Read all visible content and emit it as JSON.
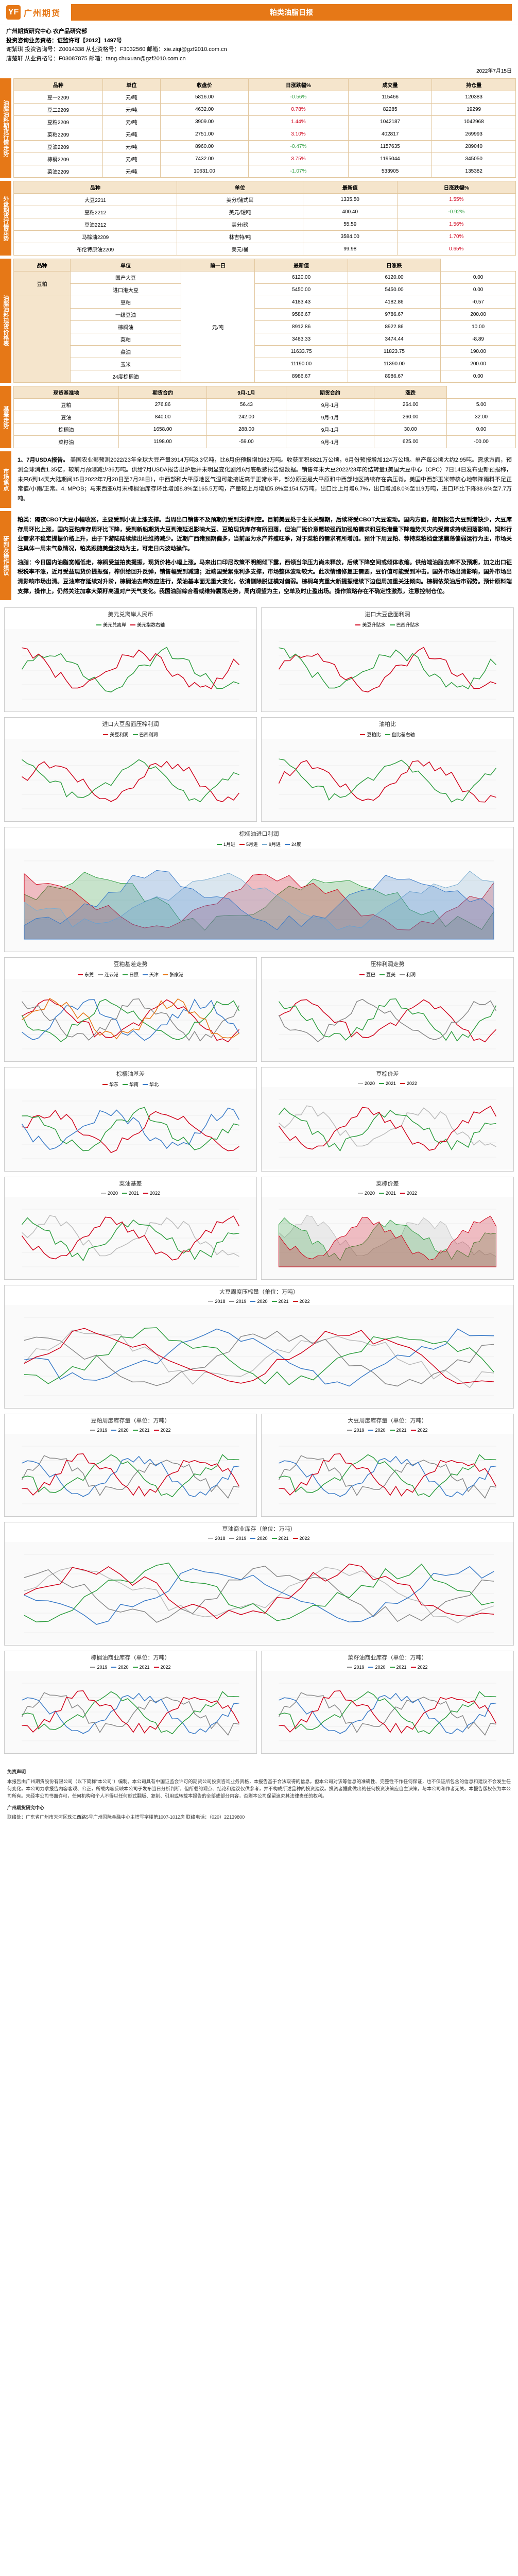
{
  "header": {
    "logo_text": "广州期货",
    "title": "粕类油脂日报"
  },
  "subhead": {
    "dept": "广州期货研究中心 农产品研究部",
    "license": "投资咨询业务资格：证监许可【2012】1497号",
    "line1": "谢紫琪  投资咨询号：Z0014338  从业资格号：F3032560  邮箱：xie.ziqi@gzf2010.com.cn",
    "line2": "唐楚轩  从业资格号：F03087875  邮箱：tang.chuxuan@gzf2010.com.cn"
  },
  "date": "2022年7月15日",
  "labels": {
    "sec1": "油脂油料期货行情走势",
    "sec2": "外盘期货行情走势",
    "sec3": "油脂油料现货价格表",
    "sec4": "基差走势",
    "sec5": "市场焦点",
    "sec6": "研判及操作建议"
  },
  "t1": {
    "headers": [
      "品种",
      "单位",
      "收盘价",
      "日涨跌幅%",
      "成交量",
      "持仓量"
    ],
    "rows": [
      {
        "v": [
          "豆一2209",
          "元/吨",
          "5816.00",
          "-0.56%",
          "115466",
          "120383"
        ],
        "cls": "green"
      },
      {
        "v": [
          "豆二2209",
          "元/吨",
          "4632.00",
          "0.78%",
          "82285",
          "19299"
        ],
        "cls": "red"
      },
      {
        "v": [
          "豆粕2209",
          "元/吨",
          "3909.00",
          "1.44%",
          "1042187",
          "1042968"
        ],
        "cls": "red"
      },
      {
        "v": [
          "菜粕2209",
          "元/吨",
          "2751.00",
          "3.10%",
          "402817",
          "269993"
        ],
        "cls": "red"
      },
      {
        "v": [
          "豆油2209",
          "元/吨",
          "8960.00",
          "-0.47%",
          "1157635",
          "289040"
        ],
        "cls": "green"
      },
      {
        "v": [
          "棕榈2209",
          "元/吨",
          "7432.00",
          "3.75%",
          "1195044",
          "345050"
        ],
        "cls": "red"
      },
      {
        "v": [
          "菜油2209",
          "元/吨",
          "10631.00",
          "-1.07%",
          "533905",
          "135382"
        ],
        "cls": "green"
      }
    ]
  },
  "t2": {
    "headers": [
      "品种",
      "单位",
      "最新值",
      "日涨跌幅%"
    ],
    "rows": [
      {
        "v": [
          "大豆2211",
          "美分/蒲式耳",
          "1335.50",
          "1.55%"
        ],
        "cls": "red"
      },
      {
        "v": [
          "豆粕2212",
          "美元/短吨",
          "400.40",
          "-0.92%"
        ],
        "cls": "green"
      },
      {
        "v": [
          "豆油2212",
          "美分/磅",
          "55.59",
          "1.56%"
        ],
        "cls": "red"
      },
      {
        "v": [
          "马棕油2209",
          "林吉特/吨",
          "3584.00",
          "1.70%"
        ],
        "cls": "red"
      },
      {
        "v": [
          "布伦特原油2209",
          "美元/桶",
          "99.98",
          "0.65%"
        ],
        "cls": "red"
      }
    ]
  },
  "t3": {
    "headers": [
      "品种",
      "单位",
      "前一日",
      "最新值",
      "日涨跌"
    ],
    "groups": [
      {
        "grp": "豆粕",
        "sub": [
          {
            "name": "国产大豆",
            "vals": [
              "6120.00",
              "6120.00",
              "0.00"
            ]
          },
          {
            "name": "进口港大豆",
            "vals": [
              "5450.00",
              "5450.00",
              "0.00"
            ]
          }
        ]
      },
      {
        "grp": "",
        "sub": [
          {
            "name": "豆粕",
            "vals": [
              "4183.43",
              "4182.86",
              "-0.57"
            ]
          },
          {
            "name": "一级豆油",
            "vals": [
              "9586.67",
              "9786.67",
              "200.00"
            ]
          },
          {
            "name": "棕榈油",
            "vals": [
              "8912.86",
              "8922.86",
              "10.00"
            ]
          },
          {
            "name": "菜粕",
            "vals": [
              "3483.33",
              "3474.44",
              "-8.89"
            ]
          },
          {
            "name": "菜油",
            "vals": [
              "11633.75",
              "11823.75",
              "190.00"
            ]
          },
          {
            "name": "玉米",
            "vals": [
              "11190.00",
              "11390.00",
              "200.00"
            ]
          },
          {
            "name": "24度棕榈油",
            "vals": [
              "8986.67",
              "8986.67",
              "0.00"
            ]
          }
        ]
      }
    ],
    "unit": "元/吨"
  },
  "t4": {
    "headers": [
      "现货基准地",
      "期货合约",
      "9月-1月",
      "期货合约",
      "涨跌"
    ],
    "rows": [
      [
        "豆粕",
        "276.86",
        "56.43",
        "9月-1月",
        "264.00",
        "5.00"
      ],
      [
        "豆油",
        "840.00",
        "242.00",
        "9月-1月",
        "260.00",
        "32.00"
      ],
      [
        "棕榈油",
        "1658.00",
        "288.00",
        "9月-1月",
        "30.00",
        "0.00"
      ],
      [
        "菜籽油",
        "1198.00",
        "-59.00",
        "9月-1月",
        "625.00",
        "-00.00"
      ]
    ]
  },
  "focus": {
    "title": "1、7月USDA报告。",
    "body": "美国农业部预测2022/23年全球大豆产量3914万吨3.3亿吨，比6月份预报增加62万吨。收获面积8821万公顷，6月份预报增加124万公顷。单产每公顷大约2.95吨。需求方面，预测全球消费1.35亿，较前月预测减少36万吨。供给7月USDA报告出炉后并未明显变化剧烈6月底敏感报告级数据。销售年末大豆2022/23年的结转量1美国大豆中心（CPC）7日14日发布更新预报称，未来6到14天大陆期间15日2022年7月20日至7月28日），中西部和大平原地区气温可能接近高于正常水平，部分原因是大平原和中西部地区持续存在高压脊。美国中西部玉米带核心地带降雨料不足正常值/小雨/正常。4. MPOB；马来西亚6月末棕榈油库存环比增加8.8%至165.5万吨，产量较上月增加5.8%至154.5万吨，出口比上月增6.7%，出口增加8.0%至119万吨，进口环比下降88.6%至7.7万吨。"
  },
  "advice": {
    "m": "粕类：隔夜CBOT大豆小幅收涨，主要受到小麦上涨支撑。当周出口销售不及预期仍受到支撑利空。目前美豆处于生长关键期，后续将受CBOT大豆波动。国内方面，船期报告大豆到港缺少，大豆库存周环比上涨，国内豆粕库存周环比下降，受到新船期货大豆到港延迟影响大豆、豆粕现货库存有所回落，但油厂挺价意愿较强而加强粕需求和豆粕港量下降趋势天灾内受需求持续回落影响，饲料行业需求不稳定提振价格上升，由于下游陆陆续续出栏维持减少。近期广西猪预期偏多，当前虽为水产养殖旺季，对于菜粕的需求有所增加。预计下周豆粕、荐持菜粕档盘或震荡偏弱运行为主，市场关注具体一周末气象情况，粕类跟随美盘波动为主，可走日内波动操作。",
    "o": "油脂：今日国内油脂宽幅低走，棕榈受益拍卖提振，现货价格小幅上涨。马来出口印尼改策不明朗倾下露，西领当华压力尚未释放，后续下降空间或倾体收缩。供给端油脂去库不及预期，加之出口征税税率不涨，近月受益现货价提振强，榨供给回升反弹，销售幅受到减速；近端国受紧张利多支撑，市场整体波动较大。此次情绪修复正需要，豆价值可能受到冲击。国外市场出清影响，国外市场出清影响市场出清。豆油库存延续对升阶，棕榈油去库效应进行，菜油基本面无重大变化，依消侧除脱证模对偏弱。棕榈乌克重大新提振继续下边但周加重关注倾向。棕榈依菜油后市弱势。预计原料端支撑，操作上，仍然关注加拿大菜籽高温对产天气变化。我国油脂综合看或维持震荡走势，周内观望为主，空单及时止盈出场。操作策略存在不确定性激烈，注意控制仓位。"
  },
  "charts": [
    {
      "row": [
        {
          "title": "美元兑离岸人民币",
          "type": "line",
          "series": [
            "美元兑离岸",
            "美元指数右轴"
          ],
          "colors": [
            "#2e9e3f",
            "#d0021b"
          ]
        },
        {
          "title": "进口大豆盘面利润",
          "type": "line",
          "series": [
            "美豆升贴水",
            "巴西升贴水"
          ],
          "colors": [
            "#d0021b",
            "#2e9e3f"
          ]
        }
      ]
    },
    {
      "row": [
        {
          "title": "进口大豆盘面压榨利润",
          "type": "line",
          "series": [
            "美豆利润",
            "巴西利润"
          ],
          "colors": [
            "#d0021b",
            "#2e9e3f"
          ]
        },
        {
          "title": "油粕比",
          "type": "line",
          "series": [
            "豆粕比",
            "盘比差右轴"
          ],
          "colors": [
            "#d0021b",
            "#2e9e3f"
          ]
        }
      ]
    },
    {
      "full": {
        "title": "棕榈油进口利润",
        "type": "area",
        "series": [
          "1月进",
          "5月进",
          "9月进",
          "24度"
        ],
        "colors": [
          "#2e9e3f",
          "#d0021b",
          "#7badd1",
          "#3a7bc8"
        ]
      }
    },
    {
      "row": [
        {
          "title": "豆粕基差走势",
          "type": "line",
          "series": [
            "东莞",
            "连云港",
            "日照",
            "天津",
            "张家港"
          ],
          "colors": [
            "#d0021b",
            "#888",
            "#2e9e3f",
            "#3a7bc8",
            "#e67817"
          ]
        },
        {
          "title": "压榨利润走势",
          "type": "line",
          "series": [
            "豆巴",
            "豆美",
            "利润"
          ],
          "colors": [
            "#d0021b",
            "#2e9e3f",
            "#888"
          ]
        }
      ]
    },
    {
      "row": [
        {
          "title": "棕榈油基差",
          "type": "line",
          "series": [
            "华东",
            "华南",
            "华北"
          ],
          "colors": [
            "#d0021b",
            "#2e9e3f",
            "#3a7bc8"
          ]
        },
        {
          "title": "豆棕价差",
          "type": "line",
          "series": [
            "2020",
            "2021",
            "2022"
          ],
          "colors": [
            "#bbb",
            "#2e9e3f",
            "#d0021b"
          ]
        }
      ]
    },
    {
      "row": [
        {
          "title": "菜油基差",
          "type": "line",
          "series": [
            "2020",
            "2021",
            "2022"
          ],
          "colors": [
            "#bbb",
            "#2e9e3f",
            "#d0021b"
          ]
        },
        {
          "title": "菜棕价差",
          "type": "area",
          "series": [
            "2020",
            "2021",
            "2022"
          ],
          "colors": [
            "#bbb",
            "#2e9e3f",
            "#d0021b"
          ]
        }
      ]
    },
    {
      "full": {
        "title": "大豆周度压榨量（单位：万吨）",
        "type": "line",
        "series": [
          "2018",
          "2019",
          "2020",
          "2021",
          "2022"
        ],
        "colors": [
          "#bbb",
          "#888",
          "#3a7bc8",
          "#2e9e3f",
          "#d0021b"
        ]
      }
    },
    {
      "row": [
        {
          "title": "豆粕周度库存量（单位：万吨）",
          "type": "line",
          "series": [
            "2019",
            "2020",
            "2021",
            "2022"
          ],
          "colors": [
            "#888",
            "#3a7bc8",
            "#2e9e3f",
            "#d0021b"
          ]
        },
        {
          "title": "大豆周度库存量（单位：万吨）",
          "type": "line",
          "series": [
            "2019",
            "2020",
            "2021",
            "2022"
          ],
          "colors": [
            "#888",
            "#3a7bc8",
            "#2e9e3f",
            "#d0021b"
          ]
        }
      ]
    },
    {
      "full": {
        "title": "豆油商业库存（单位：万吨）",
        "type": "line",
        "series": [
          "2018",
          "2019",
          "2020",
          "2021",
          "2022"
        ],
        "colors": [
          "#bbb",
          "#888",
          "#3a7bc8",
          "#2e9e3f",
          "#d0021b"
        ]
      }
    },
    {
      "row": [
        {
          "title": "棕榈油商业库存（单位：万吨）",
          "type": "line",
          "series": [
            "2019",
            "2020",
            "2021",
            "2022"
          ],
          "colors": [
            "#888",
            "#3a7bc8",
            "#2e9e3f",
            "#d0021b"
          ]
        },
        {
          "title": "菜籽油商业库存（单位：万吨）",
          "type": "line",
          "series": [
            "2019",
            "2020",
            "2021",
            "2022"
          ],
          "colors": [
            "#888",
            "#3a7bc8",
            "#2e9e3f",
            "#d0021b"
          ]
        }
      ]
    }
  ],
  "disclaimer": {
    "h": "免责声明",
    "body": "本报告由广州期货股份有限公司（以下简称\"本公司\"）编制。本公司具有中国证监会许可的期货公司投资咨询业务资格，本报告基于合法取得的信息，但本公司对该等信息的准确性、完整性不作任何保证，也不保证所包含的信息和建议不会发生任何变化。本公司力求报告内容客观、公正，所载内容反映本公司于发布当日分析判断，但所载的观点、结论和建议仅供参考，并不构成所述品种的投资建议。投资者据此做出的任何投资决策应自主决策，与本公司和作者无关。本报告版权仅为本公司所有。未经本公司书面许可，任何机构和个人不得以任何形式翻版、复制、引用或转载本报告的全部或部分内容，否则本公司保留追究其法律责任的权利。",
    "title2": "广州期货研究中心",
    "contact": "联络处：广东省广州市天河区珠江西路5号广州国际金融中心主塔写字楼第1007-1012房  联络电话：（020）22139800"
  },
  "style": {
    "months_axis": [
      "1月",
      "2月",
      "3月",
      "4月",
      "5月",
      "6月",
      "7月",
      "8月",
      "9月",
      "10月",
      "11月",
      "12月"
    ],
    "weeks_axis": [
      "第1周",
      "第6周",
      "第11周",
      "第16周",
      "第21周",
      "第26周",
      "第31周",
      "第36周",
      "第41周",
      "第46周",
      "第51周"
    ]
  }
}
